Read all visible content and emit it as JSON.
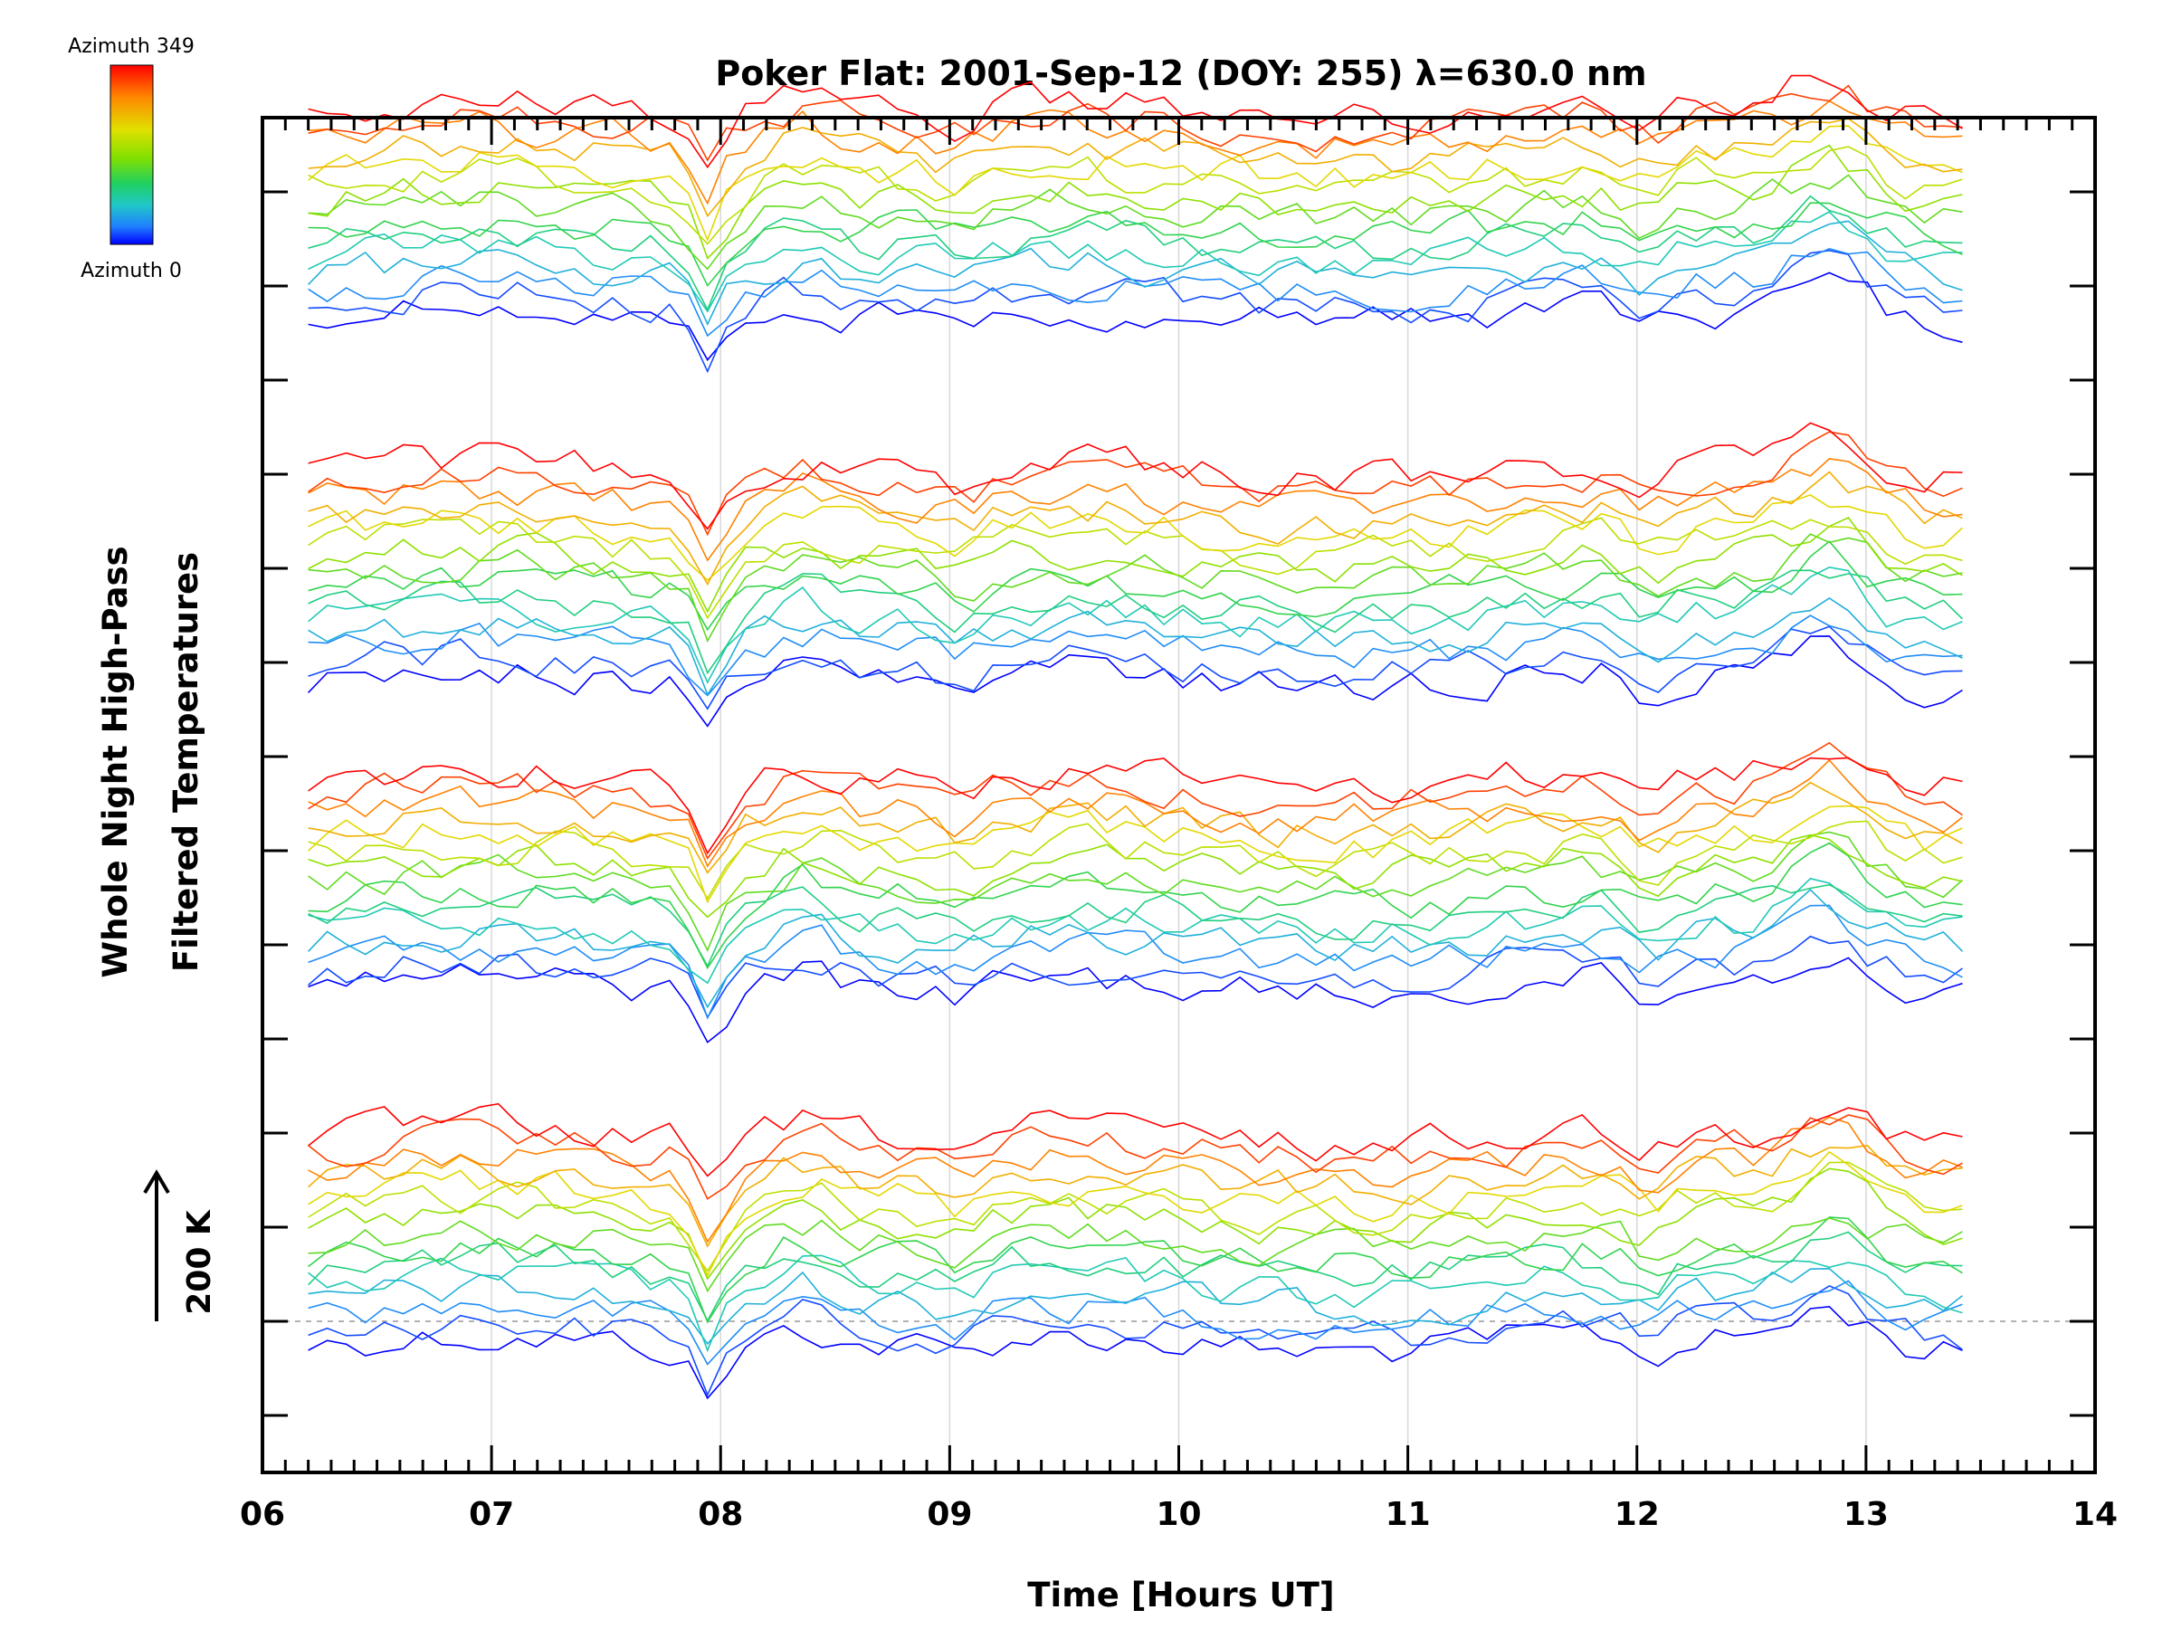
{
  "chart_data": {
    "type": "line",
    "title": "Poker Flat: 2001-Sep-12 (DOY: 255) λ=630.0 nm",
    "xlabel": "Time [Hours UT]",
    "ylabel_line1": "Whole Night High-Pass",
    "ylabel_line2": "Filtered Temperatures",
    "xlim": [
      6,
      14
    ],
    "x_ticks": [
      "06",
      "07",
      "08",
      "09",
      "10",
      "11",
      "12",
      "13",
      "14"
    ],
    "x_grid": [
      7,
      8,
      9,
      10,
      11,
      12,
      13
    ],
    "y_major_ticks": 14,
    "scale_bar_label": "200 K",
    "colorbar": {
      "top_label": "Azimuth 349",
      "bottom_label": "Azimuth 0",
      "colors": [
        "#ff0000",
        "#ff8800",
        "#e8e800",
        "#88e000",
        "#20d060",
        "#20c8c8",
        "#2080ff",
        "#0000ff"
      ]
    },
    "series_count": 60,
    "offset_per_series_K": 42,
    "time_start_hours": 6.2,
    "time_end_hours": 13.5,
    "sample_spacing_hours": 0.083,
    "description_of_series": "Stacked high-pass filtered temperature traces, one per azimuth (0 to 349), each offset vertically; colour indicates azimuth"
  }
}
